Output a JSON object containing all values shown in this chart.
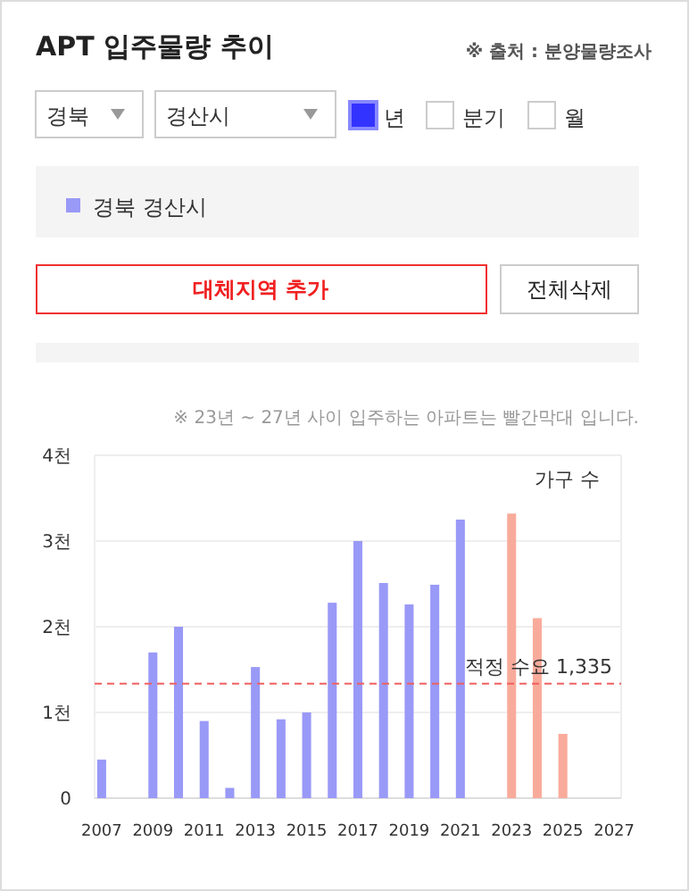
{
  "chart_data": {
    "type": "bar",
    "title": "APT 입주물량 추이",
    "ylabel": "가구 수",
    "categories": [
      "2007",
      null,
      "2009",
      null,
      "2011",
      null,
      "2013",
      null,
      "2015",
      null,
      "2017",
      null,
      "2019",
      null,
      "2021",
      null,
      "2023",
      null,
      "2025",
      null,
      "2027"
    ],
    "series": [
      {
        "name": "경북 경산시",
        "color": "#9999f7",
        "values": [
          0.45,
          null,
          1.7,
          2.0,
          0.9,
          0.12,
          1.53,
          0.92,
          1.0,
          2.28,
          3.0,
          2.51,
          2.26,
          2.49,
          3.25,
          null,
          3.32,
          2.1,
          0.75,
          null,
          null
        ],
        "colors": [
          "#9999f7",
          null,
          "#9999f7",
          "#9999f7",
          "#9999f7",
          "#9999f7",
          "#9999f7",
          "#9999f7",
          "#9999f7",
          "#9999f7",
          "#9999f7",
          "#9999f7",
          "#9999f7",
          "#9999f7",
          "#9999f7",
          null,
          "#f9ab9b",
          "#f9ab9b",
          "#f9ab9b",
          null,
          null
        ]
      }
    ],
    "ylim": [
      0,
      4
    ],
    "yticks": [
      0,
      {
        "value": 1,
        "label": "1천"
      },
      {
        "value": 2,
        "label": "2천"
      },
      {
        "value": 3,
        "label": "3천"
      },
      {
        "value": 4,
        "label": "4천"
      }
    ],
    "grid": "y",
    "legend": "top",
    "ref_lines": [
      {
        "axis": "y",
        "value": 1.335,
        "label": "적정 수요 1,335",
        "color": "#f06060",
        "line_style": "dashed"
      }
    ],
    "annotations": [
      "※ 출처 : 분양물량조사",
      "※ 23년 ~ 27년 사이 입주하는 아파트는 빨간막대 입니다.",
      "경북",
      "경산시",
      "년",
      "분기",
      "월",
      "대체지역 추가",
      "전체삭제"
    ]
  }
}
